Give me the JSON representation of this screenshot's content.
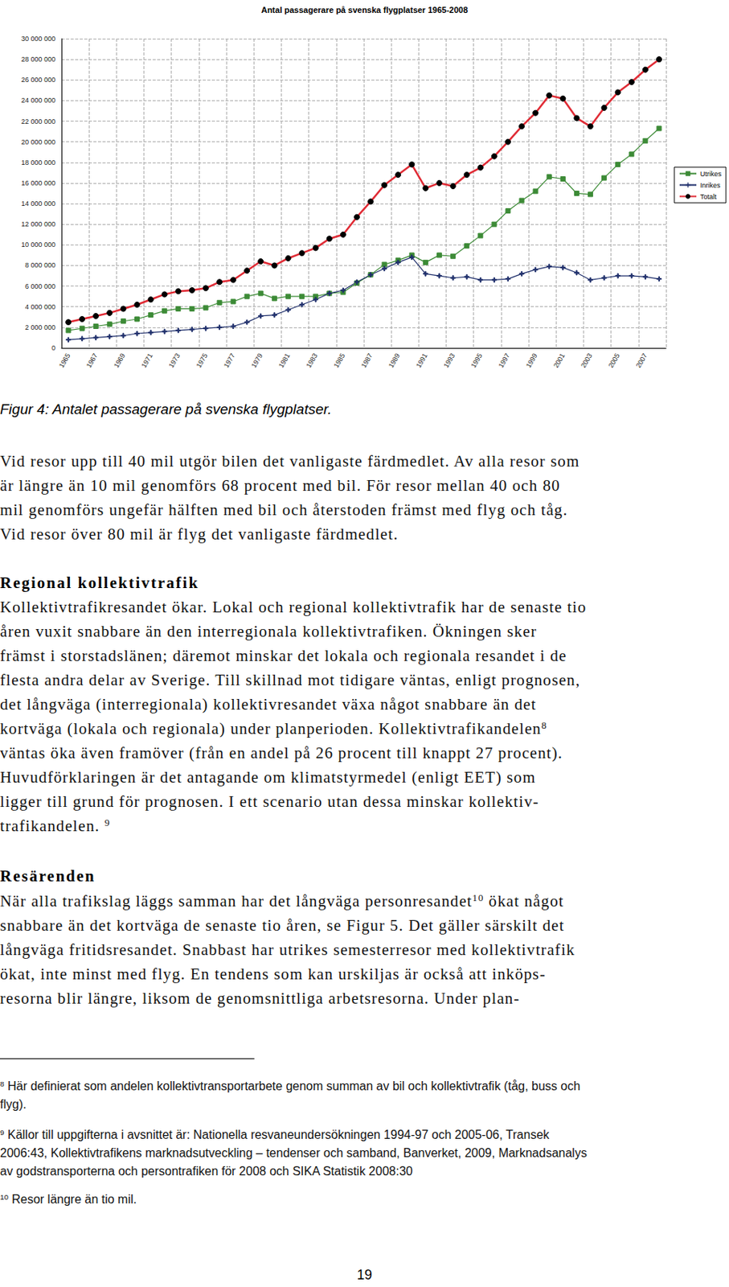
{
  "chart_data": {
    "type": "line",
    "title": "Antal passagerare på svenska flygplatser 1965-2008",
    "categories": [
      "1965",
      null,
      "1967",
      null,
      "1969",
      null,
      "1971",
      null,
      "1973",
      null,
      "1975",
      null,
      "1977",
      null,
      "1979",
      null,
      "1981",
      null,
      "1983",
      null,
      "1985",
      null,
      "1987",
      null,
      "1989",
      null,
      "1991",
      null,
      "1993",
      null,
      "1995",
      null,
      "1997",
      null,
      "1999",
      null,
      "2001",
      null,
      "2003",
      null,
      "2005",
      null,
      "2007",
      null
    ],
    "series": [
      {
        "name": "Utrikes",
        "color": "#3d8b37",
        "marker": "square",
        "values": [
          1700000,
          1900000,
          2100000,
          2300000,
          2600000,
          2800000,
          3200000,
          3600000,
          3800000,
          3800000,
          3900000,
          4400000,
          4500000,
          5000000,
          5300000,
          4800000,
          5000000,
          5000000,
          5000000,
          5300000,
          5400000,
          6300000,
          7100000,
          8100000,
          8500000,
          9000000,
          8300000,
          9000000,
          8900000,
          9900000,
          10900000,
          12000000,
          13300000,
          14300000,
          15200000,
          16600000,
          16400000,
          15000000,
          14900000,
          16500000,
          17800000,
          18800000,
          20100000,
          21300000
        ]
      },
      {
        "name": "Inrikes",
        "color": "#1f2f6b",
        "marker": "cross",
        "values": [
          800000,
          900000,
          1000000,
          1100000,
          1200000,
          1400000,
          1500000,
          1600000,
          1700000,
          1800000,
          1900000,
          2000000,
          2100000,
          2500000,
          3100000,
          3200000,
          3700000,
          4200000,
          4700000,
          5300000,
          5600000,
          6400000,
          7100000,
          7700000,
          8300000,
          8800000,
          7200000,
          7000000,
          6800000,
          6900000,
          6600000,
          6600000,
          6700000,
          7200000,
          7600000,
          7900000,
          7800000,
          7300000,
          6600000,
          6800000,
          7000000,
          7000000,
          6900000,
          6700000
        ]
      },
      {
        "name": "Totalt",
        "color": "#e02b35",
        "marker": "circle",
        "values": [
          2500000,
          2800000,
          3100000,
          3400000,
          3800000,
          4200000,
          4700000,
          5200000,
          5500000,
          5600000,
          5800000,
          6400000,
          6600000,
          7500000,
          8400000,
          8000000,
          8700000,
          9200000,
          9700000,
          10600000,
          11000000,
          12700000,
          14200000,
          15800000,
          16800000,
          17800000,
          15500000,
          16000000,
          15700000,
          16800000,
          17500000,
          18600000,
          20000000,
          21500000,
          22800000,
          24500000,
          24200000,
          22300000,
          21500000,
          23300000,
          24800000,
          25800000,
          27000000,
          28000000
        ]
      }
    ],
    "ylim": [
      0,
      30000000
    ],
    "yticks": [
      0,
      {
        "value": 2000000,
        "label": "2 000 000"
      },
      {
        "value": 4000000,
        "label": "4 000 000"
      },
      {
        "value": 6000000,
        "label": "6 000 000"
      },
      {
        "value": 8000000,
        "label": "8 000 000"
      },
      {
        "value": 10000000,
        "label": "10 000 000"
      },
      {
        "value": 12000000,
        "label": "12 000 000"
      },
      {
        "value": 14000000,
        "label": "14 000 000"
      },
      {
        "value": 16000000,
        "label": "16 000 000"
      },
      {
        "value": 18000000,
        "label": "18 000 000"
      },
      {
        "value": 20000000,
        "label": "20 000 000"
      },
      {
        "value": 22000000,
        "label": "22 000 000"
      },
      {
        "value": 24000000,
        "label": "24 000 000"
      },
      {
        "value": 26000000,
        "label": "26 000 000"
      },
      {
        "value": 28000000,
        "label": "28 000 000"
      },
      {
        "value": 30000000,
        "label": "30 000 000"
      }
    ],
    "grid": true,
    "legend": "right"
  },
  "document": {
    "caption": "Figur 4: Antalet passagerare på svenska flygplatser.",
    "blocks": [
      {
        "kind": "paragraph",
        "lines": [
          "Vid resor upp till 40 mil utgör bilen det vanligaste färdmedlet. Av alla resor som",
          "är längre än 10 mil genomförs 68 procent med bil. För resor mellan 40 och 80",
          "mil genomförs ungefär hälften med bil och återstoden främst med flyg och tåg.",
          "Vid resor över 80 mil är flyg det vanligaste färdmedlet."
        ]
      },
      {
        "kind": "heading",
        "text": "Regional kollektivtrafik"
      },
      {
        "kind": "paragraph",
        "lines": [
          "Kollektivtrafikresandet ökar. Lokal och regional kollektivtrafik har de senaste tio",
          "åren vuxit snabbare än den interregionala kollektivtrafiken. Ökningen sker",
          "främst i storstadslänen; däremot minskar det lokala och regionala resandet i de",
          "flesta andra delar av Sverige. Till skillnad mot tidigare väntas, enligt prognosen,",
          "det långväga (interregionala) kollektivresandet växa något snabbare än det",
          [
            "kortväga (lokala och regionala) under planperioden. Kollektivtrafikandelen",
            {
              "sup": "8"
            }
          ],
          "väntas öka även framöver (från en andel på 26 procent till knappt 27 procent).",
          "Huvudförklaringen är det antagande om klimatstyrmedel (enligt EET) som",
          "ligger till grund för prognosen. I ett scenario utan dessa minskar kollektiv-",
          [
            "trafikandelen. ",
            {
              "sup": "9"
            }
          ]
        ]
      },
      {
        "kind": "heading",
        "text": "Resärenden"
      },
      {
        "kind": "paragraph",
        "lines": [
          [
            "När alla trafikslag läggs samman har det långväga personresandet",
            {
              "sup": "10"
            },
            " ökat något"
          ],
          "snabbare än det kortväga de senaste tio åren, se Figur 5. Det gäller särskilt det",
          "långväga fritidsresandet. Snabbast har utrikes semesterresor med kollektivtrafik",
          "ökat, inte minst med flyg. En tendens som kan urskiljas är också att inköps-",
          "resorna blir längre, liksom de genomsnittliga arbetsresorna. Under plan-"
        ]
      }
    ],
    "footnotes": [
      {
        "number": "8",
        "lines": [
          "Här definierat som andelen kollektivtransportarbete genom summan av bil och kollektivtrafik (tåg, buss och",
          "flyg)."
        ]
      },
      {
        "number": "9",
        "lines": [
          "Källor till uppgifterna i avsnittet är: Nationella resvaneundersökningen 1994-97 och 2005-06, Transek",
          "2006:43, Kollektivtrafikens marknadsutveckling – tendenser och samband, Banverket, 2009, Marknadsanalys",
          "av godstransporterna och persontrafiken för 2008 och SIKA Statistik 2008:30"
        ]
      },
      {
        "number": "10",
        "lines": [
          "Resor längre än tio mil."
        ]
      }
    ],
    "page_number": "19"
  }
}
